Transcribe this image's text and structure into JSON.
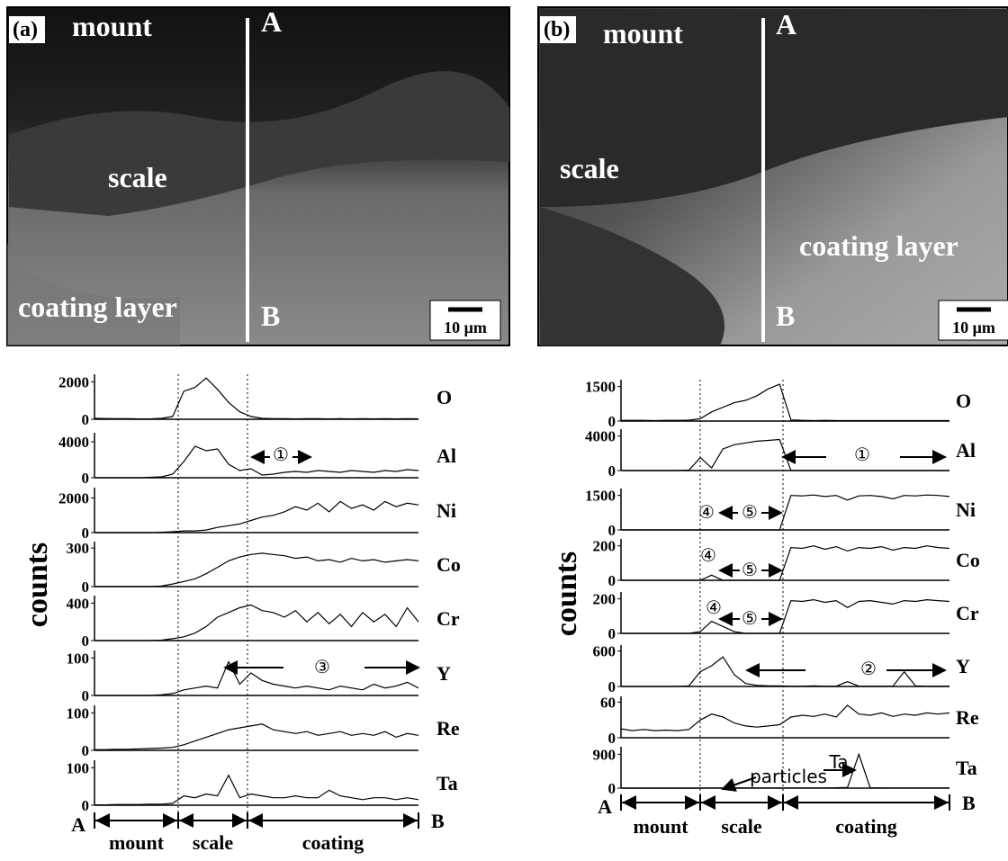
{
  "images": [
    {
      "panel": "(a)",
      "labels": [
        "mount",
        "scale",
        "coating layer"
      ],
      "line_ends": [
        "A",
        "B"
      ],
      "scale_bar": "10 μm"
    },
    {
      "panel": "(b)",
      "labels": [
        "mount",
        "scale",
        "coating layer"
      ],
      "line_ends": [
        "A",
        "B"
      ],
      "scale_bar": "10 μm"
    }
  ],
  "chart_data": [
    {
      "type": "line",
      "ylabel": "counts",
      "color": "#000",
      "x_end_labels": [
        "A",
        "B"
      ],
      "regions": [
        "mount",
        "scale",
        "coating"
      ],
      "series": [
        {
          "name": "O",
          "ylim": [
            0,
            2400
          ],
          "yticks": [
            0,
            2000
          ],
          "values": [
            50,
            40,
            30,
            30,
            20,
            20,
            50,
            150,
            1500,
            1700,
            2200,
            1600,
            900,
            400,
            150,
            50,
            30,
            30,
            20,
            30,
            30,
            20,
            30,
            20,
            30,
            20,
            30,
            20,
            30,
            20
          ]
        },
        {
          "name": "Al",
          "ylim": [
            0,
            5000
          ],
          "yticks": [
            0,
            4000
          ],
          "annotations": [
            "①"
          ],
          "values": [
            0,
            0,
            0,
            0,
            0,
            50,
            100,
            400,
            1800,
            3500,
            3000,
            3200,
            1500,
            800,
            1000,
            300,
            400,
            600,
            700,
            600,
            800,
            700,
            600,
            800,
            700,
            600,
            800,
            700,
            900,
            800
          ]
        },
        {
          "name": "Ni",
          "ylim": [
            0,
            2600
          ],
          "yticks": [
            0,
            2000
          ],
          "values": [
            0,
            0,
            0,
            0,
            0,
            0,
            20,
            50,
            100,
            100,
            150,
            300,
            400,
            500,
            700,
            900,
            1000,
            1200,
            1500,
            1300,
            1700,
            1200,
            1800,
            1400,
            1600,
            1300,
            1800,
            1500,
            1700,
            1600
          ]
        },
        {
          "name": "Co",
          "ylim": [
            0,
            350
          ],
          "yticks": [
            0,
            300
          ],
          "values": [
            0,
            0,
            0,
            0,
            0,
            0,
            5,
            20,
            40,
            60,
            100,
            150,
            200,
            230,
            250,
            260,
            250,
            240,
            220,
            230,
            200,
            210,
            190,
            220,
            200,
            210,
            190,
            200,
            210,
            200
          ]
        },
        {
          "name": "Cr",
          "ylim": [
            0,
            480
          ],
          "yticks": [
            0,
            400
          ],
          "values": [
            0,
            0,
            0,
            0,
            0,
            0,
            5,
            20,
            40,
            80,
            150,
            250,
            300,
            350,
            380,
            320,
            300,
            250,
            320,
            200,
            300,
            180,
            280,
            150,
            300,
            200,
            280,
            150,
            350,
            200
          ]
        },
        {
          "name": "Y",
          "ylim": [
            0,
            120
          ],
          "yticks": [
            0,
            100
          ],
          "annotations": [
            "③"
          ],
          "values": [
            0,
            0,
            0,
            0,
            0,
            0,
            2,
            5,
            15,
            20,
            25,
            20,
            90,
            30,
            60,
            40,
            30,
            25,
            20,
            25,
            20,
            15,
            25,
            20,
            15,
            30,
            20,
            25,
            35,
            20
          ]
        },
        {
          "name": "Re",
          "ylim": [
            0,
            120
          ],
          "yticks": [
            0,
            100
          ],
          "values": [
            2,
            2,
            3,
            3,
            4,
            5,
            6,
            8,
            15,
            25,
            35,
            45,
            55,
            60,
            65,
            70,
            55,
            50,
            45,
            50,
            40,
            45,
            50,
            40,
            45,
            40,
            50,
            35,
            45,
            40
          ]
        },
        {
          "name": "Ta",
          "ylim": [
            0,
            120
          ],
          "yticks": [
            0,
            100
          ],
          "values": [
            1,
            1,
            2,
            2,
            2,
            3,
            3,
            5,
            25,
            20,
            30,
            25,
            80,
            20,
            30,
            25,
            20,
            20,
            25,
            20,
            20,
            40,
            25,
            20,
            15,
            20,
            20,
            15,
            20,
            15
          ]
        }
      ]
    },
    {
      "type": "line",
      "ylabel": "counts",
      "color": "#000",
      "x_end_labels": [
        "A",
        "B"
      ],
      "regions": [
        "mount",
        "scale",
        "coating"
      ],
      "series": [
        {
          "name": "O",
          "ylim": [
            0,
            1800
          ],
          "yticks": [
            0,
            1500
          ],
          "values": [
            30,
            30,
            30,
            20,
            30,
            30,
            40,
            100,
            400,
            600,
            800,
            900,
            1100,
            1400,
            1600,
            50,
            30,
            20,
            30,
            20,
            20,
            20,
            20,
            20,
            20,
            20,
            20,
            20,
            20,
            20
          ]
        },
        {
          "name": "Al",
          "ylim": [
            0,
            4800
          ],
          "yticks": [
            0,
            4000
          ],
          "annotations": [
            "①"
          ],
          "values": [
            0,
            0,
            0,
            0,
            0,
            0,
            50,
            1500,
            300,
            2500,
            3000,
            3200,
            3400,
            3500,
            3600,
            0,
            0,
            0,
            0,
            0,
            0,
            0,
            0,
            0,
            0,
            0,
            0,
            0,
            0,
            0
          ]
        },
        {
          "name": "Ni",
          "ylim": [
            0,
            1800
          ],
          "yticks": [
            0,
            1500
          ],
          "annotations": [
            "④",
            "⑤"
          ],
          "values": [
            0,
            0,
            0,
            0,
            0,
            0,
            0,
            0,
            0,
            0,
            0,
            0,
            0,
            0,
            0,
            1500,
            1480,
            1520,
            1450,
            1500,
            1300,
            1480,
            1500,
            1450,
            1350,
            1500,
            1480,
            1520,
            1500,
            1450
          ]
        },
        {
          "name": "Co",
          "ylim": [
            0,
            240
          ],
          "yticks": [
            0,
            200
          ],
          "annotations": [
            "④",
            "⑤"
          ],
          "values": [
            0,
            0,
            0,
            0,
            0,
            0,
            0,
            0,
            30,
            0,
            0,
            0,
            0,
            0,
            0,
            190,
            185,
            200,
            180,
            195,
            170,
            190,
            185,
            195,
            175,
            190,
            185,
            200,
            190,
            185
          ]
        },
        {
          "name": "Cr",
          "ylim": [
            0,
            240
          ],
          "yticks": [
            0,
            200
          ],
          "annotations": [
            "④",
            "⑤"
          ],
          "values": [
            0,
            0,
            0,
            0,
            0,
            0,
            0,
            10,
            70,
            40,
            10,
            0,
            0,
            0,
            0,
            190,
            185,
            195,
            180,
            190,
            150,
            185,
            190,
            180,
            170,
            190,
            185,
            195,
            190,
            185
          ]
        },
        {
          "name": "Y",
          "ylim": [
            0,
            700
          ],
          "yticks": [
            0,
            600
          ],
          "annotations": [
            "②"
          ],
          "values": [
            0,
            0,
            0,
            0,
            0,
            0,
            10,
            250,
            350,
            500,
            200,
            50,
            20,
            10,
            10,
            5,
            5,
            10,
            5,
            5,
            80,
            5,
            5,
            5,
            5,
            250,
            10,
            5,
            5,
            5
          ]
        },
        {
          "name": "Re",
          "ylim": [
            0,
            70
          ],
          "yticks": [
            0,
            60
          ],
          "values": [
            15,
            12,
            14,
            12,
            13,
            12,
            14,
            30,
            40,
            35,
            25,
            20,
            18,
            20,
            22,
            35,
            38,
            36,
            40,
            35,
            55,
            40,
            38,
            42,
            36,
            40,
            38,
            42,
            40,
            42
          ]
        },
        {
          "name": "Ta",
          "ylim": [
            0,
            1100
          ],
          "yticks": [
            0,
            900
          ],
          "annotations": [
            "Ta",
            "particles"
          ],
          "values": [
            0,
            0,
            0,
            0,
            0,
            0,
            0,
            0,
            5,
            5,
            5,
            5,
            5,
            5,
            5,
            5,
            5,
            5,
            5,
            10,
            20,
            900,
            10,
            5,
            5,
            5,
            5,
            5,
            5,
            5
          ]
        }
      ]
    }
  ]
}
